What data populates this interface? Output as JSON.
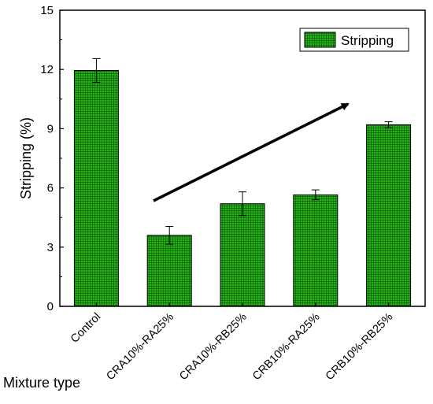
{
  "chart_data": {
    "type": "bar",
    "title": "",
    "xlabel": "Mixture type",
    "ylabel": "Stripping (%)",
    "ylim": [
      0,
      15
    ],
    "yticks": [
      0,
      3,
      6,
      9,
      12,
      15
    ],
    "categories": [
      "Control",
      "CRA10%-RA25%",
      "CRA10%-RB25%",
      "CRB10%-RA25%",
      "CRB10%-RB25%"
    ],
    "series": [
      {
        "name": "Stripping",
        "values": [
          11.95,
          3.6,
          5.2,
          5.65,
          9.2
        ],
        "errors": [
          0.6,
          0.45,
          0.6,
          0.25,
          0.15
        ]
      }
    ],
    "colors": {
      "bar_fill": "#22b814",
      "bar_grid": "#0f5a0a",
      "axis": "#000000"
    },
    "legend": {
      "position": "top-right"
    },
    "annotation": "arrow-trend-up",
    "grid": false
  }
}
